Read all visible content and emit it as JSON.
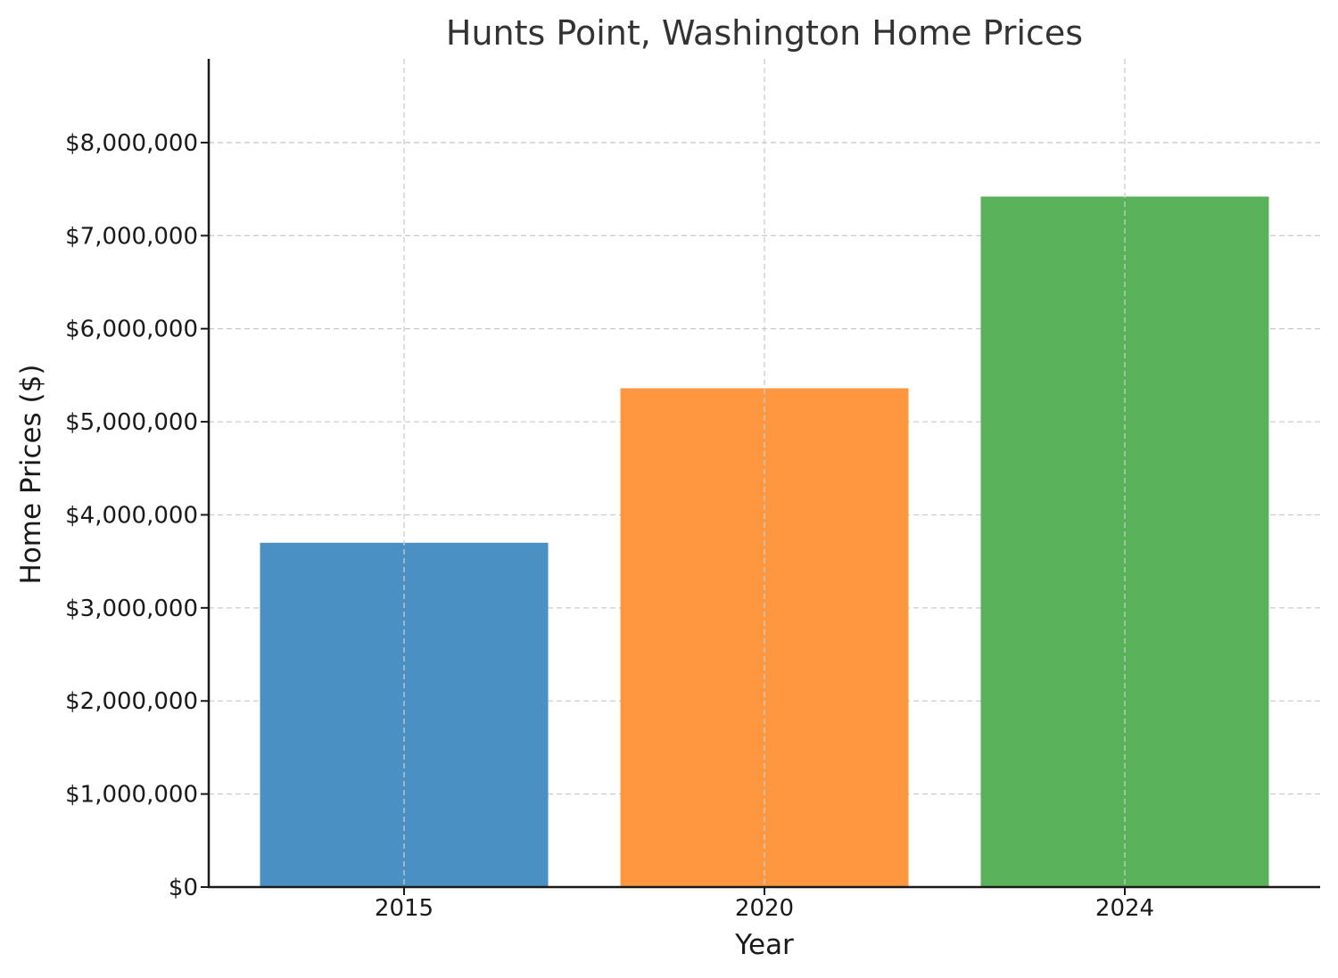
{
  "chart_data": {
    "type": "bar",
    "title": "Hunts Point, Washington Home Prices",
    "xlabel": "Year",
    "ylabel": "Home Prices ($)",
    "categories": [
      "2015",
      "2020",
      "2024"
    ],
    "values": [
      3700000,
      5360000,
      7420000
    ],
    "colors": [
      "#4a90c2",
      "#ff9740",
      "#59b259"
    ],
    "ylim": [
      0,
      8900000
    ],
    "yticks": [
      0,
      1000000,
      2000000,
      3000000,
      4000000,
      5000000,
      6000000,
      7000000,
      8000000
    ],
    "ytick_labels": [
      "$0",
      "$1,000,000",
      "$2,000,000",
      "$3,000,000",
      "$4,000,000",
      "$5,000,000",
      "$6,000,000",
      "$7,000,000",
      "$8,000,000"
    ],
    "grid": true,
    "legend": "none"
  }
}
